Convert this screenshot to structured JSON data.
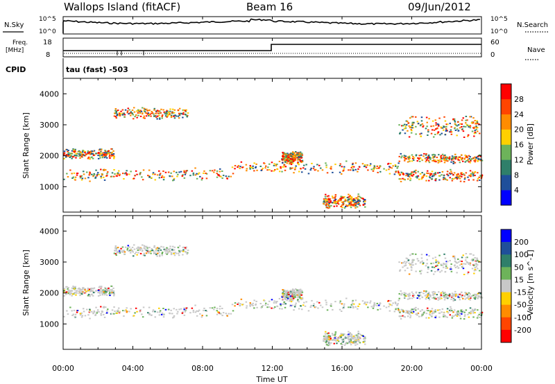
{
  "header": {
    "station": "Wallops Island (fitACF)",
    "beam": "Beam 16",
    "date": "09/Jun/2012"
  },
  "sky_panel": {
    "left_label": "N.Sky",
    "right_label": "N.Search",
    "tick_top": "10^5",
    "tick_bottom": "10^0"
  },
  "freq_panel": {
    "left_label_line1": "Freq.",
    "left_label_line2": "[MHz]",
    "right_label": "Nave",
    "left_ticks": [
      "18",
      "8"
    ],
    "right_ticks": [
      "60",
      "0"
    ]
  },
  "cpid_panel": {
    "label": "CPID",
    "value": "tau (fast) -503"
  },
  "colors": {
    "power": [
      "#0000ff",
      "#1f4f9a",
      "#2f7f6a",
      "#6db35a",
      "#ffd000",
      "#ff8c00",
      "#ff4500",
      "#ff0000"
    ],
    "velocity": [
      "#0000ff",
      "#1f4f9a",
      "#2f7f6a",
      "#6db35a",
      "#c8c8c8",
      "#ffd000",
      "#ff8c00",
      "#ff4500",
      "#ff0000"
    ]
  },
  "chart_data": [
    {
      "type": "heatmap",
      "name": "power",
      "ylabel": "Slant Range [km]",
      "ylim": [
        180,
        4500
      ],
      "xlim_hours": [
        0,
        24
      ],
      "y_ticks": [
        1000,
        2000,
        3000,
        4000
      ],
      "colorbar_label": "Power [dB]",
      "colorbar_ticks": [
        4,
        8,
        12,
        16,
        20,
        24,
        28
      ],
      "colorbar_range": [
        0,
        32
      ]
    },
    {
      "type": "heatmap",
      "name": "velocity",
      "ylabel": "Slant Range [km]",
      "ylim": [
        180,
        4500
      ],
      "xlim_hours": [
        0,
        24
      ],
      "y_ticks": [
        1000,
        2000,
        3000,
        4000
      ],
      "colorbar_label": "Velocity [m s^-1]",
      "colorbar_ticks": [
        200,
        100,
        50,
        15,
        -15,
        -50,
        -100,
        -200
      ]
    }
  ],
  "time_axis": {
    "tick_labels": [
      "00:00",
      "04:00",
      "08:00",
      "12:00",
      "16:00",
      "20:00",
      "00:00"
    ],
    "tick_hours": [
      0,
      4,
      8,
      12,
      16,
      20,
      24
    ],
    "label": "Time UT"
  }
}
